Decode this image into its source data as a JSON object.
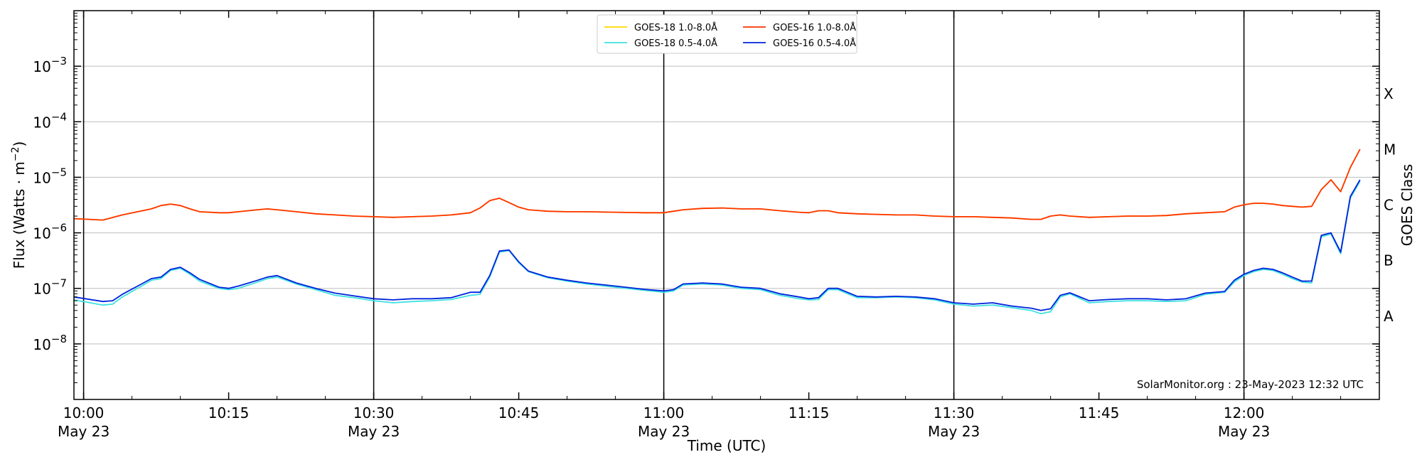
{
  "chart_data": {
    "type": "line",
    "xlabel": "Time (UTC)",
    "ylabel": "Flux (Watts · m",
    "ylabel_sup": "−2",
    "ylabel_close": ")",
    "y2label": "GOES Class",
    "yscale": "log",
    "ylim": [
      1e-09,
      0.01
    ],
    "xlim_minutes": [
      -1,
      134
    ],
    "grid": "horizontal",
    "legend_position": "top-center",
    "credit": "SolarMonitor.org : 23-May-2023 12:32 UTC",
    "x_ticks": [
      {
        "t": 0,
        "label": "10:00",
        "sub": "May 23"
      },
      {
        "t": 15,
        "label": "10:15",
        "sub": ""
      },
      {
        "t": 30,
        "label": "10:30",
        "sub": "May 23"
      },
      {
        "t": 45,
        "label": "10:45",
        "sub": ""
      },
      {
        "t": 60,
        "label": "11:00",
        "sub": "May 23"
      },
      {
        "t": 75,
        "label": "11:15",
        "sub": ""
      },
      {
        "t": 90,
        "label": "11:30",
        "sub": "May 23"
      },
      {
        "t": 105,
        "label": "11:45",
        "sub": ""
      },
      {
        "t": 120,
        "label": "12:00",
        "sub": "May 23"
      }
    ],
    "day_lines": [
      0,
      30,
      60,
      90,
      120
    ],
    "y_ticks": [
      {
        "exp": -3,
        "base": "10",
        "sup": "−3"
      },
      {
        "exp": -4,
        "base": "10",
        "sup": "−4"
      },
      {
        "exp": -5,
        "base": "10",
        "sup": "−5"
      },
      {
        "exp": -6,
        "base": "10",
        "sup": "−6"
      },
      {
        "exp": -7,
        "base": "10",
        "sup": "−7"
      },
      {
        "exp": -8,
        "base": "10",
        "sup": "−8"
      }
    ],
    "goes_classes": [
      {
        "label": "X",
        "exp": -3.5
      },
      {
        "label": "M",
        "exp": -4.5
      },
      {
        "label": "C",
        "exp": -5.5
      },
      {
        "label": "B",
        "exp": -6.5
      },
      {
        "label": "A",
        "exp": -7.5
      }
    ],
    "series": [
      {
        "name": "GOES-18 1.0-8.0Å",
        "color": "#ffd700",
        "t": [
          -1,
          2,
          4,
          7,
          8,
          9,
          10,
          11,
          12,
          14,
          15,
          16,
          18,
          19,
          20,
          22,
          24,
          26,
          28,
          30,
          32,
          34,
          36,
          38,
          40,
          41,
          42,
          43,
          44,
          45,
          46,
          48,
          50,
          52,
          55,
          58,
          60,
          61,
          62,
          64,
          66,
          68,
          70,
          72,
          74,
          75,
          76,
          77,
          78,
          80,
          82,
          84,
          86,
          88,
          90,
          92,
          94,
          96,
          98,
          99,
          100,
          101,
          102,
          104,
          106,
          108,
          110,
          112,
          114,
          116,
          118,
          119,
          120,
          121,
          122,
          123,
          124,
          125,
          126,
          127,
          128,
          129,
          130,
          131,
          132
        ],
        "y": [
          1.8e-06,
          1.7e-06,
          2.1e-06,
          2.7e-06,
          3.1e-06,
          3.3e-06,
          3.1e-06,
          2.7e-06,
          2.4e-06,
          2.3e-06,
          2.3e-06,
          2.4e-06,
          2.6e-06,
          2.7e-06,
          2.6e-06,
          2.4e-06,
          2.2e-06,
          2.1e-06,
          2e-06,
          1.95e-06,
          1.9e-06,
          1.95e-06,
          2e-06,
          2.1e-06,
          2.3e-06,
          2.8e-06,
          3.8e-06,
          4.2e-06,
          3.5e-06,
          2.9e-06,
          2.6e-06,
          2.45e-06,
          2.4e-06,
          2.4e-06,
          2.35e-06,
          2.3e-06,
          2.3e-06,
          2.45e-06,
          2.6e-06,
          2.75e-06,
          2.8e-06,
          2.7e-06,
          2.7e-06,
          2.5e-06,
          2.35e-06,
          2.3e-06,
          2.5e-06,
          2.5e-06,
          2.3e-06,
          2.2e-06,
          2.15e-06,
          2.1e-06,
          2.1e-06,
          2e-06,
          1.95e-06,
          1.95e-06,
          1.9e-06,
          1.85e-06,
          1.75e-06,
          1.75e-06,
          2e-06,
          2.1e-06,
          2e-06,
          1.9e-06,
          1.95e-06,
          2e-06,
          2e-06,
          2.05e-06,
          2.2e-06,
          2.3e-06,
          2.4e-06,
          2.9e-06,
          3.2e-06,
          3.4e-06,
          3.4e-06,
          3.3e-06,
          3.1e-06,
          3e-06,
          2.9e-06,
          3e-06,
          6e-06,
          9e-06,
          5.5e-06,
          1.5e-05,
          3.2e-05
        ]
      },
      {
        "name": "GOES-18 0.5-4.0Å",
        "color": "#40e0e0",
        "t": [
          -1,
          2,
          3,
          4,
          6,
          7,
          8,
          9,
          10,
          11,
          12,
          14,
          15,
          16,
          18,
          19,
          20,
          22,
          24,
          26,
          28,
          30,
          32,
          34,
          36,
          38,
          40,
          41,
          42,
          43,
          44,
          45,
          46,
          48,
          50,
          52,
          55,
          58,
          60,
          61,
          62,
          64,
          66,
          68,
          70,
          72,
          74,
          75,
          76,
          77,
          78,
          80,
          82,
          84,
          86,
          88,
          90,
          92,
          94,
          96,
          98,
          99,
          100,
          101,
          102,
          104,
          106,
          108,
          110,
          112,
          114,
          116,
          118,
          119,
          120,
          121,
          122,
          123,
          124,
          125,
          126,
          127,
          128,
          129,
          130,
          131,
          132
        ],
        "y": [
          6.2e-08,
          5e-08,
          5.2e-08,
          7e-08,
          1.1e-07,
          1.4e-07,
          1.5e-07,
          2.1e-07,
          2.3e-07,
          1.8e-07,
          1.35e-07,
          1e-07,
          9.5e-08,
          1e-07,
          1.3e-07,
          1.5e-07,
          1.6e-07,
          1.2e-07,
          9.5e-08,
          7.5e-08,
          6.8e-08,
          6e-08,
          5.5e-08,
          5.8e-08,
          6e-08,
          6.3e-08,
          7.5e-08,
          7.8e-08,
          1.6e-07,
          4.5e-07,
          4.8e-07,
          2.9e-07,
          2e-07,
          1.55e-07,
          1.35e-07,
          1.2e-07,
          1.05e-07,
          9.2e-08,
          8.5e-08,
          9e-08,
          1.15e-07,
          1.2e-07,
          1.15e-07,
          1e-07,
          9.5e-08,
          7.5e-08,
          6.5e-08,
          6.2e-08,
          6.3e-08,
          9.5e-08,
          9.5e-08,
          6.8e-08,
          6.8e-08,
          7e-08,
          6.8e-08,
          6.2e-08,
          5.2e-08,
          4.8e-08,
          5e-08,
          4.5e-08,
          4e-08,
          3.5e-08,
          3.8e-08,
          7e-08,
          8e-08,
          5.5e-08,
          5.8e-08,
          6e-08,
          6e-08,
          5.8e-08,
          6e-08,
          7.8e-08,
          8.5e-08,
          1.3e-07,
          1.7e-07,
          2e-07,
          2.2e-07,
          2.1e-07,
          1.8e-07,
          1.5e-07,
          1.3e-07,
          1.25e-07,
          8.5e-07,
          9.5e-07,
          4.2e-07,
          4.2e-06,
          8.5e-06
        ]
      },
      {
        "name": "GOES-16 1.0-8.0Å",
        "color": "#ff3300",
        "t": [
          -1,
          2,
          4,
          7,
          8,
          9,
          10,
          11,
          12,
          14,
          15,
          16,
          18,
          19,
          20,
          22,
          24,
          26,
          28,
          30,
          32,
          34,
          36,
          38,
          40,
          41,
          42,
          43,
          44,
          45,
          46,
          48,
          50,
          52,
          55,
          58,
          60,
          61,
          62,
          64,
          66,
          68,
          70,
          72,
          74,
          75,
          76,
          77,
          78,
          80,
          82,
          84,
          86,
          88,
          90,
          92,
          94,
          96,
          98,
          99,
          100,
          101,
          102,
          104,
          106,
          108,
          110,
          112,
          114,
          116,
          118,
          119,
          120,
          121,
          122,
          123,
          124,
          125,
          126,
          127,
          128,
          129,
          130,
          131,
          132
        ],
        "y": [
          1.8e-06,
          1.7e-06,
          2.1e-06,
          2.7e-06,
          3.1e-06,
          3.3e-06,
          3.1e-06,
          2.7e-06,
          2.4e-06,
          2.3e-06,
          2.3e-06,
          2.4e-06,
          2.6e-06,
          2.7e-06,
          2.6e-06,
          2.4e-06,
          2.2e-06,
          2.1e-06,
          2e-06,
          1.95e-06,
          1.9e-06,
          1.95e-06,
          2e-06,
          2.1e-06,
          2.3e-06,
          2.8e-06,
          3.8e-06,
          4.2e-06,
          3.5e-06,
          2.9e-06,
          2.6e-06,
          2.45e-06,
          2.4e-06,
          2.4e-06,
          2.35e-06,
          2.3e-06,
          2.3e-06,
          2.45e-06,
          2.6e-06,
          2.75e-06,
          2.8e-06,
          2.7e-06,
          2.7e-06,
          2.5e-06,
          2.35e-06,
          2.3e-06,
          2.5e-06,
          2.5e-06,
          2.3e-06,
          2.2e-06,
          2.15e-06,
          2.1e-06,
          2.1e-06,
          2e-06,
          1.95e-06,
          1.95e-06,
          1.9e-06,
          1.85e-06,
          1.75e-06,
          1.75e-06,
          2e-06,
          2.1e-06,
          2e-06,
          1.9e-06,
          1.95e-06,
          2e-06,
          2e-06,
          2.05e-06,
          2.2e-06,
          2.3e-06,
          2.4e-06,
          2.9e-06,
          3.2e-06,
          3.4e-06,
          3.4e-06,
          3.3e-06,
          3.1e-06,
          3e-06,
          2.9e-06,
          3e-06,
          6e-06,
          9e-06,
          5.5e-06,
          1.5e-05,
          3.2e-05
        ]
      },
      {
        "name": "GOES-16 0.5-4.0Å",
        "color": "#0022dd",
        "t": [
          -1,
          2,
          3,
          4,
          6,
          7,
          8,
          9,
          10,
          11,
          12,
          14,
          15,
          16,
          18,
          19,
          20,
          22,
          24,
          26,
          28,
          30,
          32,
          34,
          36,
          38,
          40,
          41,
          42,
          43,
          44,
          45,
          46,
          48,
          50,
          52,
          55,
          58,
          60,
          61,
          62,
          64,
          66,
          68,
          70,
          72,
          74,
          75,
          76,
          77,
          78,
          80,
          82,
          84,
          86,
          88,
          90,
          92,
          94,
          96,
          98,
          99,
          100,
          101,
          102,
          104,
          106,
          108,
          110,
          112,
          114,
          116,
          118,
          119,
          120,
          121,
          122,
          123,
          124,
          125,
          126,
          127,
          128,
          129,
          130,
          131,
          132
        ],
        "y": [
          7e-08,
          5.8e-08,
          6e-08,
          7.8e-08,
          1.2e-07,
          1.5e-07,
          1.6e-07,
          2.2e-07,
          2.4e-07,
          1.9e-07,
          1.45e-07,
          1.05e-07,
          1e-07,
          1.1e-07,
          1.4e-07,
          1.6e-07,
          1.7e-07,
          1.25e-07,
          1e-07,
          8.2e-08,
          7.3e-08,
          6.5e-08,
          6.2e-08,
          6.5e-08,
          6.5e-08,
          6.8e-08,
          8.5e-08,
          8.5e-08,
          1.7e-07,
          4.7e-07,
          4.9e-07,
          3e-07,
          2.05e-07,
          1.6e-07,
          1.4e-07,
          1.25e-07,
          1.1e-07,
          9.6e-08,
          9e-08,
          9.5e-08,
          1.2e-07,
          1.25e-07,
          1.2e-07,
          1.05e-07,
          1e-07,
          8e-08,
          7e-08,
          6.5e-08,
          6.8e-08,
          1e-07,
          1e-07,
          7.2e-08,
          7e-08,
          7.2e-08,
          7e-08,
          6.5e-08,
          5.5e-08,
          5.2e-08,
          5.5e-08,
          4.8e-08,
          4.4e-08,
          4e-08,
          4.3e-08,
          7.5e-08,
          8.3e-08,
          6e-08,
          6.3e-08,
          6.5e-08,
          6.5e-08,
          6.2e-08,
          6.5e-08,
          8.2e-08,
          8.8e-08,
          1.4e-07,
          1.8e-07,
          2.1e-07,
          2.3e-07,
          2.2e-07,
          1.9e-07,
          1.6e-07,
          1.35e-07,
          1.35e-07,
          9e-07,
          1e-06,
          4.5e-07,
          4.5e-06,
          9e-06
        ]
      }
    ]
  }
}
